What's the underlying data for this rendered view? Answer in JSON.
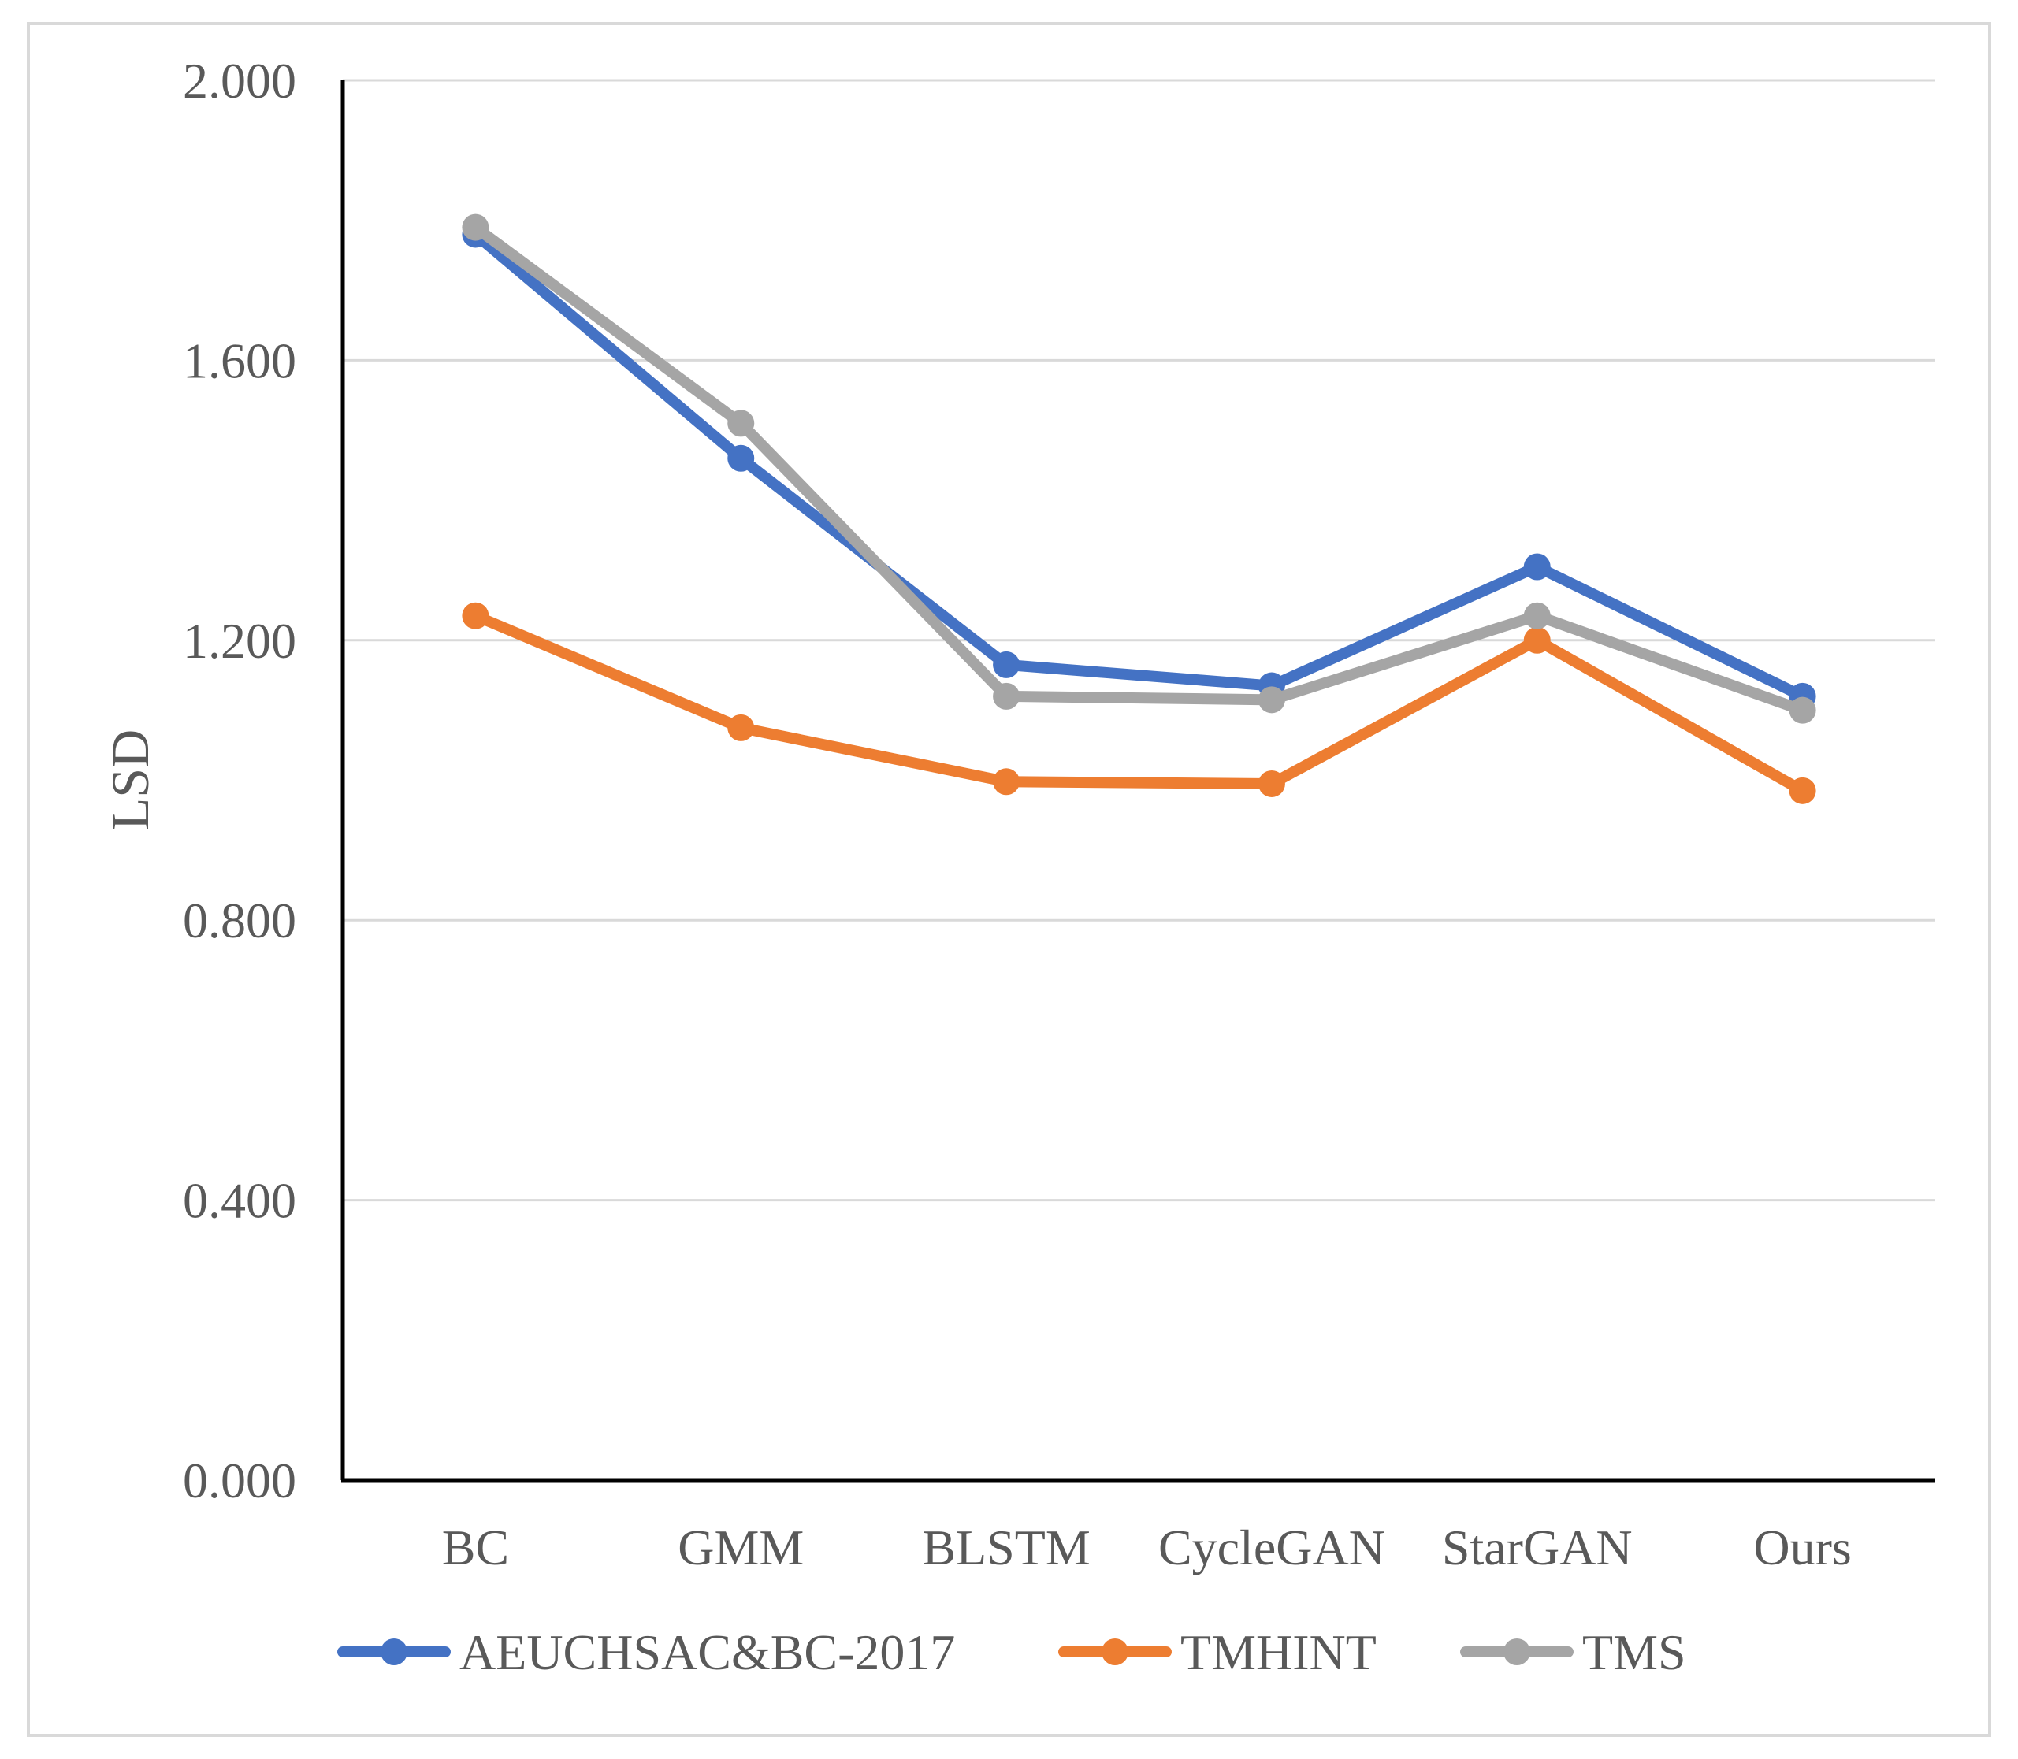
{
  "chart_data": {
    "type": "line",
    "title": "",
    "xlabel": "",
    "ylabel": "LSD",
    "ylim": [
      0,
      2
    ],
    "yticks": [
      0,
      0.4,
      0.8,
      1.2,
      1.6,
      2.0
    ],
    "ytick_labels": [
      "0.000",
      "0.400",
      "0.800",
      "1.200",
      "1.600",
      "2.000"
    ],
    "categories": [
      "BC",
      "GMM",
      "BLSTM",
      "CycleGAN",
      "StarGAN",
      "Ours"
    ],
    "grid": true,
    "legend_position": "bottom",
    "series": [
      {
        "name": "AEUCHSAC&BC-2017",
        "color": "#4472C4",
        "values": [
          1.78,
          1.46,
          1.165,
          1.135,
          1.305,
          1.12
        ]
      },
      {
        "name": "TMHINT",
        "color": "#ED7D31",
        "values": [
          1.235,
          1.075,
          0.998,
          0.995,
          1.2,
          0.985
        ]
      },
      {
        "name": "TMS",
        "color": "#A5A5A5",
        "values": [
          1.79,
          1.51,
          1.12,
          1.115,
          1.235,
          1.1
        ]
      }
    ]
  }
}
